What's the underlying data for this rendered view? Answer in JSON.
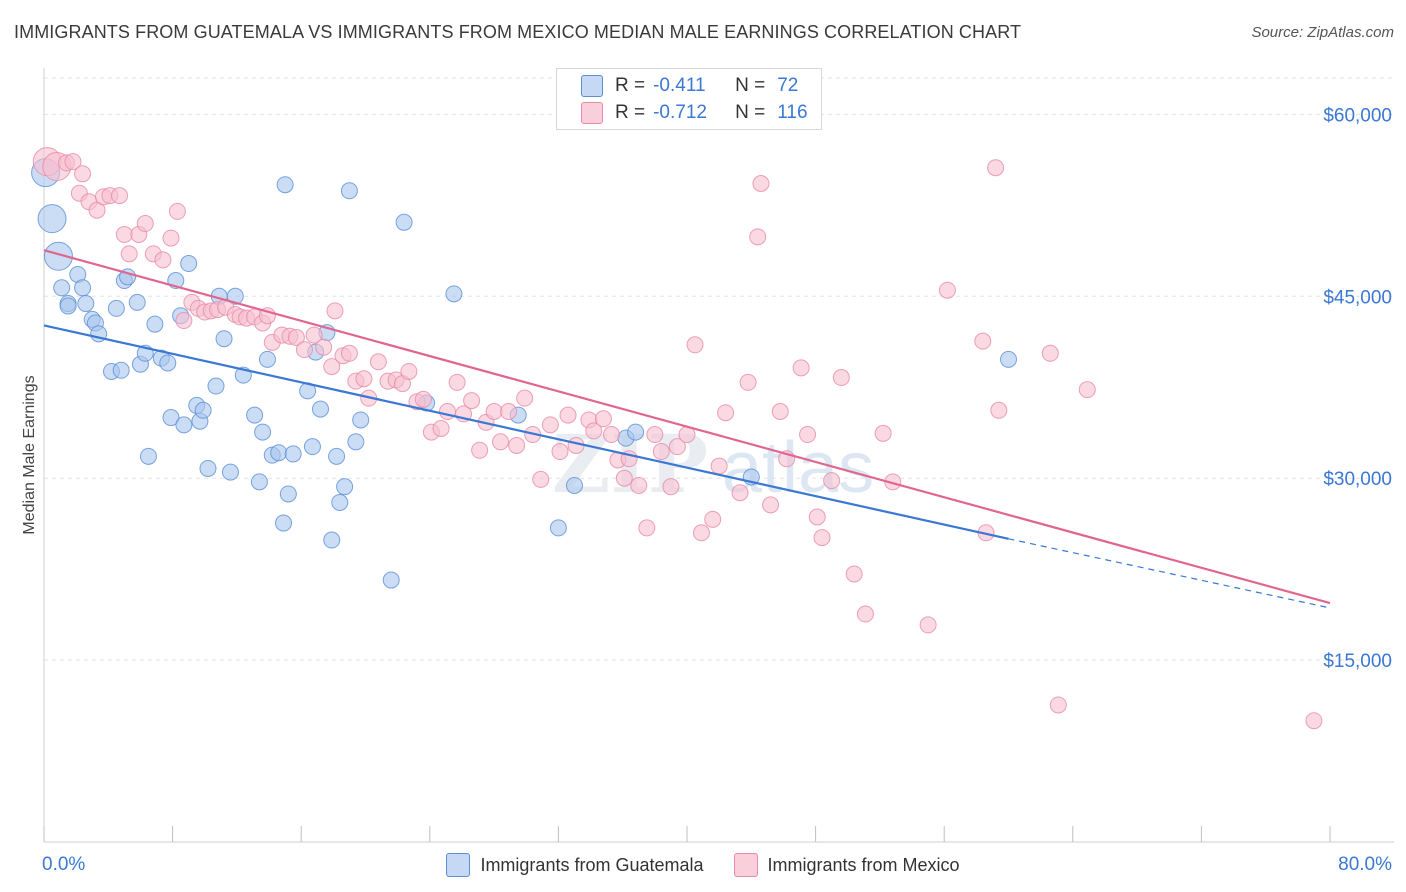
{
  "title": "IMMIGRANTS FROM GUATEMALA VS IMMIGRANTS FROM MEXICO MEDIAN MALE EARNINGS CORRELATION CHART",
  "source": "Source: ZipAtlas.com",
  "watermark": "ZIPatlas",
  "colors": {
    "blue_fill": "#a9c7ef",
    "blue_stroke": "#5b8fd6",
    "blue_line": "#3a78d4",
    "pink_fill": "#f6bfd0",
    "pink_stroke": "#e88aa8",
    "pink_line": "#e0668f",
    "axis_label": "#3a78d4",
    "grid": "#e3e3e3"
  },
  "stats": {
    "r_label": "R =",
    "n_label": "N =",
    "rows": [
      {
        "r": "-0.411",
        "n": "72"
      },
      {
        "r": "-0.712",
        "n": "116"
      }
    ]
  },
  "chart_data": {
    "type": "scatter",
    "title": "IMMIGRANTS FROM GUATEMALA VS IMMIGRANTS FROM MEXICO MEDIAN MALE EARNINGS CORRELATION CHART",
    "xlabel": "",
    "ylabel": "Median Male Earnings",
    "xlim": [
      0,
      80
    ],
    "ylim": [
      0,
      63000
    ],
    "x_tick_labels": [
      "0.0%",
      "80.0%"
    ],
    "y_ticks": [
      15000,
      30000,
      45000,
      60000
    ],
    "y_tick_labels": [
      "$15,000",
      "$30,000",
      "$45,000",
      "$60,000"
    ],
    "grid": true,
    "legend_position": "bottom-center",
    "series": [
      {
        "name": "Immigrants from Guatemala",
        "trend": {
          "x0": 0,
          "y0": 42600,
          "x1": 60,
          "y1": 25000,
          "dash_to_x": 80,
          "dash_to_y": 19300
        },
        "points": [
          [
            0.1,
            55200
          ],
          [
            0.5,
            51400
          ],
          [
            0.9,
            48300
          ],
          [
            1.1,
            45700
          ],
          [
            1.5,
            44400
          ],
          [
            1.5,
            44200
          ],
          [
            2.1,
            46800
          ],
          [
            2.4,
            45700
          ],
          [
            2.6,
            44400
          ],
          [
            3.0,
            43100
          ],
          [
            3.2,
            42800
          ],
          [
            3.4,
            41900
          ],
          [
            4.2,
            38800
          ],
          [
            4.5,
            44000
          ],
          [
            4.8,
            38900
          ],
          [
            5.0,
            46300
          ],
          [
            5.2,
            46600
          ],
          [
            5.8,
            44500
          ],
          [
            6.0,
            39400
          ],
          [
            6.3,
            40300
          ],
          [
            6.5,
            31800
          ],
          [
            6.9,
            42700
          ],
          [
            7.3,
            39900
          ],
          [
            7.7,
            39500
          ],
          [
            7.9,
            35000
          ],
          [
            8.2,
            46300
          ],
          [
            8.5,
            43400
          ],
          [
            8.7,
            34400
          ],
          [
            9.0,
            47700
          ],
          [
            9.5,
            36000
          ],
          [
            9.7,
            34700
          ],
          [
            9.9,
            35600
          ],
          [
            10.2,
            30800
          ],
          [
            10.7,
            37600
          ],
          [
            10.9,
            45000
          ],
          [
            11.2,
            41500
          ],
          [
            11.6,
            30500
          ],
          [
            11.9,
            45000
          ],
          [
            12.4,
            38500
          ],
          [
            13.1,
            35200
          ],
          [
            13.4,
            29700
          ],
          [
            13.6,
            33800
          ],
          [
            13.9,
            39800
          ],
          [
            14.2,
            31900
          ],
          [
            14.6,
            32100
          ],
          [
            14.9,
            26300
          ],
          [
            15.0,
            54200
          ],
          [
            15.2,
            28700
          ],
          [
            15.5,
            32000
          ],
          [
            16.4,
            37200
          ],
          [
            16.7,
            32600
          ],
          [
            16.9,
            40400
          ],
          [
            17.2,
            35700
          ],
          [
            17.6,
            42000
          ],
          [
            17.9,
            24900
          ],
          [
            18.2,
            31800
          ],
          [
            18.4,
            28000
          ],
          [
            18.7,
            29300
          ],
          [
            19.0,
            53700
          ],
          [
            19.4,
            33000
          ],
          [
            19.7,
            34800
          ],
          [
            21.6,
            21600
          ],
          [
            22.4,
            51100
          ],
          [
            23.8,
            36200
          ],
          [
            25.5,
            45200
          ],
          [
            29.5,
            35200
          ],
          [
            32.0,
            25900
          ],
          [
            33.0,
            29400
          ],
          [
            36.2,
            33300
          ],
          [
            36.8,
            33800
          ],
          [
            44.0,
            30100
          ],
          [
            60.0,
            39800
          ]
        ]
      },
      {
        "name": "Immigrants from Mexico",
        "trend": {
          "x0": 0,
          "y0": 48800,
          "x1": 80,
          "y1": 19700
        },
        "points": [
          [
            0.2,
            56100
          ],
          [
            0.8,
            55700
          ],
          [
            1.4,
            56000
          ],
          [
            1.8,
            56100
          ],
          [
            2.2,
            53500
          ],
          [
            2.4,
            55100
          ],
          [
            2.8,
            52800
          ],
          [
            3.3,
            52100
          ],
          [
            3.7,
            53200
          ],
          [
            4.1,
            53300
          ],
          [
            4.7,
            53300
          ],
          [
            5.0,
            50100
          ],
          [
            5.3,
            48500
          ],
          [
            5.9,
            50100
          ],
          [
            6.3,
            51000
          ],
          [
            6.8,
            48500
          ],
          [
            7.4,
            48000
          ],
          [
            7.9,
            49800
          ],
          [
            8.3,
            52000
          ],
          [
            8.7,
            43000
          ],
          [
            9.2,
            44500
          ],
          [
            9.6,
            44000
          ],
          [
            10.0,
            43700
          ],
          [
            10.4,
            43800
          ],
          [
            10.8,
            43900
          ],
          [
            11.3,
            44100
          ],
          [
            11.9,
            43500
          ],
          [
            12.2,
            43300
          ],
          [
            12.6,
            43200
          ],
          [
            13.1,
            43300
          ],
          [
            13.6,
            42800
          ],
          [
            13.9,
            43400
          ],
          [
            14.2,
            41200
          ],
          [
            14.8,
            41800
          ],
          [
            15.3,
            41700
          ],
          [
            15.7,
            41600
          ],
          [
            16.2,
            40600
          ],
          [
            16.8,
            41800
          ],
          [
            17.4,
            40800
          ],
          [
            17.9,
            39200
          ],
          [
            18.1,
            43800
          ],
          [
            18.6,
            40100
          ],
          [
            19.0,
            40300
          ],
          [
            19.4,
            38000
          ],
          [
            19.9,
            38200
          ],
          [
            20.2,
            36600
          ],
          [
            20.8,
            39600
          ],
          [
            21.4,
            38000
          ],
          [
            21.9,
            38100
          ],
          [
            22.3,
            37800
          ],
          [
            22.7,
            38800
          ],
          [
            23.2,
            36300
          ],
          [
            23.6,
            36500
          ],
          [
            24.1,
            33800
          ],
          [
            24.7,
            34100
          ],
          [
            25.1,
            35500
          ],
          [
            25.7,
            37900
          ],
          [
            26.1,
            35300
          ],
          [
            26.6,
            36400
          ],
          [
            27.1,
            32300
          ],
          [
            27.5,
            34600
          ],
          [
            28.0,
            35500
          ],
          [
            28.4,
            33000
          ],
          [
            28.9,
            35500
          ],
          [
            29.4,
            32700
          ],
          [
            29.9,
            36600
          ],
          [
            30.4,
            33600
          ],
          [
            30.9,
            29900
          ],
          [
            31.5,
            34400
          ],
          [
            32.1,
            32200
          ],
          [
            32.6,
            35200
          ],
          [
            33.1,
            32700
          ],
          [
            33.9,
            34800
          ],
          [
            34.2,
            33900
          ],
          [
            34.8,
            34900
          ],
          [
            35.3,
            33600
          ],
          [
            35.7,
            31500
          ],
          [
            36.1,
            30000
          ],
          [
            36.4,
            31600
          ],
          [
            37.0,
            29400
          ],
          [
            37.5,
            25900
          ],
          [
            38.0,
            33600
          ],
          [
            38.4,
            32200
          ],
          [
            39.0,
            29300
          ],
          [
            39.4,
            32600
          ],
          [
            40.0,
            33600
          ],
          [
            40.5,
            41000
          ],
          [
            40.9,
            25500
          ],
          [
            41.6,
            26600
          ],
          [
            42.0,
            31000
          ],
          [
            42.4,
            35400
          ],
          [
            43.3,
            28800
          ],
          [
            43.8,
            37900
          ],
          [
            44.6,
            54300
          ],
          [
            44.4,
            49900
          ],
          [
            45.2,
            27800
          ],
          [
            45.8,
            35500
          ],
          [
            46.2,
            31600
          ],
          [
            47.1,
            39100
          ],
          [
            47.5,
            33600
          ],
          [
            48.1,
            26800
          ],
          [
            48.4,
            25100
          ],
          [
            49.0,
            29800
          ],
          [
            49.6,
            38300
          ],
          [
            50.4,
            22100
          ],
          [
            51.1,
            18800
          ],
          [
            52.2,
            33700
          ],
          [
            52.8,
            29700
          ],
          [
            55.0,
            17900
          ],
          [
            56.2,
            45500
          ],
          [
            58.6,
            25500
          ],
          [
            58.4,
            41300
          ],
          [
            59.4,
            35600
          ],
          [
            59.2,
            55600
          ],
          [
            62.6,
            40300
          ],
          [
            63.1,
            11300
          ],
          [
            64.9,
            37300
          ],
          [
            79.0,
            10000
          ]
        ]
      }
    ]
  },
  "legend": {
    "items": [
      {
        "label": "Immigrants from Guatemala"
      },
      {
        "label": "Immigrants from Mexico"
      }
    ]
  }
}
